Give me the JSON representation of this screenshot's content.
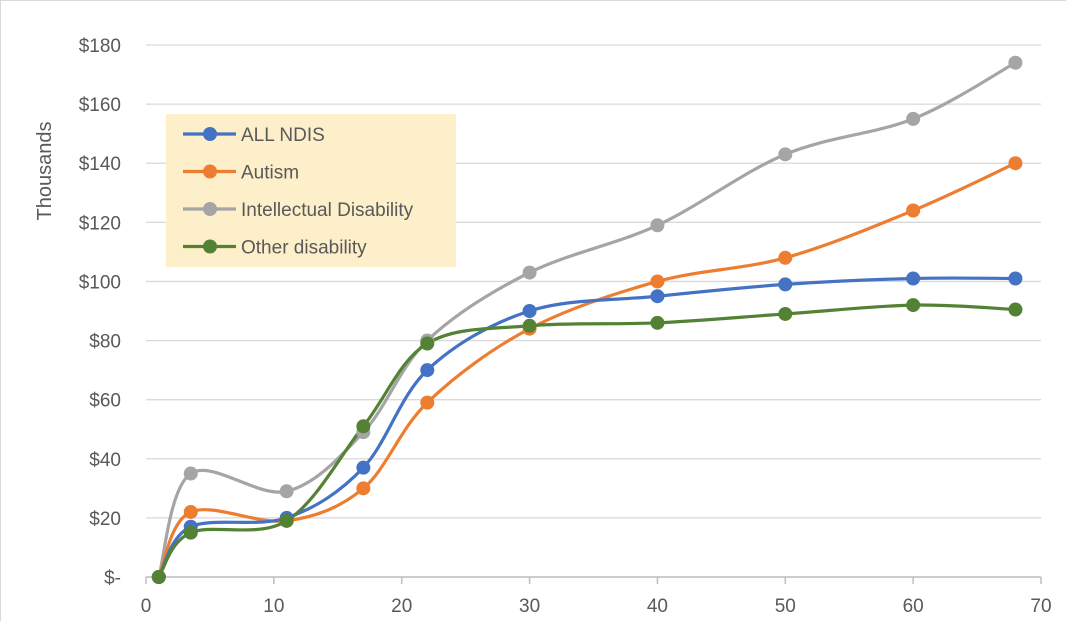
{
  "chart_data": {
    "type": "line",
    "title": "",
    "xlabel": "",
    "ylabel": "Thousands",
    "xlim": [
      0,
      70
    ],
    "ylim": [
      0,
      180
    ],
    "x_ticks": [
      0,
      10,
      20,
      30,
      40,
      50,
      60,
      70
    ],
    "x_tick_labels": [
      "0",
      "10",
      "20",
      "30",
      "40",
      "50",
      "60",
      "70"
    ],
    "y_ticks": [
      0,
      20,
      40,
      60,
      80,
      100,
      120,
      140,
      160,
      180
    ],
    "y_tick_labels": [
      "$-",
      "$20",
      "$40",
      "$60",
      "$80",
      "$100",
      "$120",
      "$140",
      "$160",
      "$180"
    ],
    "grid": "horizontal",
    "smooth": true,
    "legend": {
      "position": "top-left",
      "background": "#fdefc9"
    },
    "series": [
      {
        "name": "ALL NDIS",
        "color": "#4472c4",
        "x": [
          1,
          3.5,
          11,
          17,
          22,
          30,
          40,
          50,
          60,
          68
        ],
        "y": [
          0,
          17,
          20,
          37,
          70,
          90,
          95,
          99,
          101,
          101
        ]
      },
      {
        "name": "Autism",
        "color": "#ed7d31",
        "x": [
          1,
          3.5,
          11,
          17,
          22,
          30,
          40,
          50,
          60,
          68
        ],
        "y": [
          0,
          22,
          19,
          30,
          59,
          84,
          100,
          108,
          124,
          140
        ]
      },
      {
        "name": "Intellectual Disability",
        "color": "#a5a5a5",
        "x": [
          1,
          3.5,
          11,
          17,
          22,
          30,
          40,
          50,
          60,
          68
        ],
        "y": [
          0,
          35,
          29,
          49,
          80,
          103,
          119,
          143,
          155,
          174
        ]
      },
      {
        "name": "Other disability",
        "color": "#548235",
        "x": [
          1,
          3.5,
          11,
          17,
          22,
          30,
          40,
          50,
          60,
          68
        ],
        "y": [
          0,
          15,
          19,
          51,
          79,
          85,
          86,
          89,
          92,
          90.5
        ]
      }
    ]
  }
}
